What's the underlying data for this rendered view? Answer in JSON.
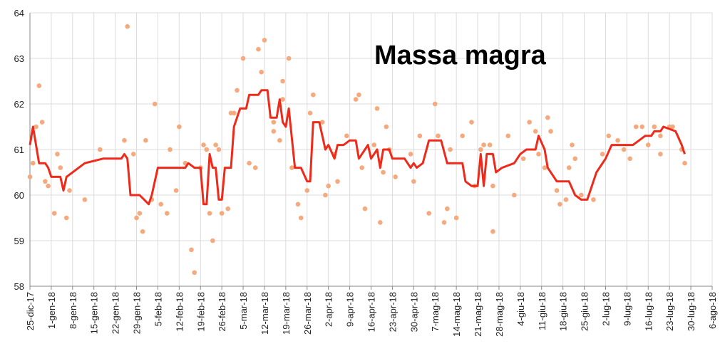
{
  "chart_data": {
    "type": "line",
    "title": "Massa magra",
    "xlim": [
      "2017-12-25",
      "2018-08-06"
    ],
    "xticks": [
      {
        "value": "2017-12-25",
        "label": "25-dic-17"
      },
      {
        "value": "2018-01-01",
        "label": "1-gen-18"
      },
      {
        "value": "2018-01-08",
        "label": "8-gen-18"
      },
      {
        "value": "2018-01-15",
        "label": "15-gen-18"
      },
      {
        "value": "2018-01-22",
        "label": "22-gen-18"
      },
      {
        "value": "2018-01-29",
        "label": "29-gen-18"
      },
      {
        "value": "2018-02-05",
        "label": "5-feb-18"
      },
      {
        "value": "2018-02-12",
        "label": "12-feb-18"
      },
      {
        "value": "2018-02-19",
        "label": "19-feb-18"
      },
      {
        "value": "2018-02-26",
        "label": "26-feb-18"
      },
      {
        "value": "2018-03-05",
        "label": "5-mar-18"
      },
      {
        "value": "2018-03-12",
        "label": "12-mar-18"
      },
      {
        "value": "2018-03-19",
        "label": "19-mar-18"
      },
      {
        "value": "2018-03-26",
        "label": "26-mar-18"
      },
      {
        "value": "2018-04-02",
        "label": "2-apr-18"
      },
      {
        "value": "2018-04-09",
        "label": "9-apr-18"
      },
      {
        "value": "2018-04-16",
        "label": "16-apr-18"
      },
      {
        "value": "2018-04-23",
        "label": "23-apr-18"
      },
      {
        "value": "2018-04-30",
        "label": "30-apr-18"
      },
      {
        "value": "2018-05-07",
        "label": "7-mag-18"
      },
      {
        "value": "2018-05-14",
        "label": "14-mag-18"
      },
      {
        "value": "2018-05-21",
        "label": "21-mag-18"
      },
      {
        "value": "2018-05-28",
        "label": "28-mag-18"
      },
      {
        "value": "2018-06-04",
        "label": "4-giu-18"
      },
      {
        "value": "2018-06-11",
        "label": "11-giu-18"
      },
      {
        "value": "2018-06-18",
        "label": "18-giu-18"
      },
      {
        "value": "2018-06-25",
        "label": "25-giu-18"
      },
      {
        "value": "2018-07-02",
        "label": "2-lug-18"
      },
      {
        "value": "2018-07-09",
        "label": "9-lug-18"
      },
      {
        "value": "2018-07-16",
        "label": "16-lug-18"
      },
      {
        "value": "2018-07-23",
        "label": "23-lug-18"
      },
      {
        "value": "2018-07-30",
        "label": "30-lug-18"
      },
      {
        "value": "2018-08-06",
        "label": "6-ago-18"
      }
    ],
    "ylim": [
      58,
      64
    ],
    "yticks": [
      58,
      59,
      60,
      61,
      62,
      63,
      64
    ],
    "grid": true,
    "series": [
      {
        "type": "scatter",
        "color": "#f6a97c",
        "x": [
          "2017-12-25",
          "2017-12-26",
          "2017-12-27",
          "2017-12-28",
          "2017-12-29",
          "2017-12-30",
          "2017-12-31",
          "2018-01-02",
          "2018-01-03",
          "2018-01-04",
          "2018-01-06",
          "2018-01-07",
          "2018-01-12",
          "2018-01-17",
          "2018-01-25",
          "2018-01-26",
          "2018-01-28",
          "2018-01-29",
          "2018-01-30",
          "2018-01-31",
          "2018-02-01",
          "2018-02-03",
          "2018-02-04",
          "2018-02-06",
          "2018-02-08",
          "2018-02-09",
          "2018-02-11",
          "2018-02-12",
          "2018-02-14",
          "2018-02-16",
          "2018-02-17",
          "2018-02-19",
          "2018-02-20",
          "2018-02-21",
          "2018-02-22",
          "2018-02-23",
          "2018-02-24",
          "2018-02-25",
          "2018-02-26",
          "2018-02-28",
          "2018-03-01",
          "2018-03-02",
          "2018-03-03",
          "2018-03-05",
          "2018-03-07",
          "2018-03-09",
          "2018-03-10",
          "2018-03-11",
          "2018-03-12",
          "2018-03-15",
          "2018-03-15",
          "2018-03-17",
          "2018-03-18",
          "2018-03-18",
          "2018-03-20",
          "2018-03-21",
          "2018-03-23",
          "2018-03-24",
          "2018-03-26",
          "2018-03-27",
          "2018-03-28",
          "2018-03-31",
          "2018-04-01",
          "2018-04-02",
          "2018-04-04",
          "2018-04-05",
          "2018-04-08",
          "2018-04-11",
          "2018-04-12",
          "2018-04-13",
          "2018-04-14",
          "2018-04-17",
          "2018-04-18",
          "2018-04-19",
          "2018-04-20",
          "2018-04-21",
          "2018-04-22",
          "2018-04-24",
          "2018-04-29",
          "2018-04-30",
          "2018-05-02",
          "2018-05-05",
          "2018-05-07",
          "2018-05-08",
          "2018-05-10",
          "2018-05-11",
          "2018-05-12",
          "2018-05-14",
          "2018-05-16",
          "2018-05-19",
          "2018-05-20",
          "2018-05-22",
          "2018-05-23",
          "2018-05-25",
          "2018-05-26",
          "2018-05-26",
          "2018-05-31",
          "2018-06-02",
          "2018-06-05",
          "2018-06-07",
          "2018-06-09",
          "2018-06-10",
          "2018-06-12",
          "2018-06-13",
          "2018-06-14",
          "2018-06-16",
          "2018-06-17",
          "2018-06-19",
          "2018-06-20",
          "2018-06-21",
          "2018-06-22",
          "2018-06-24",
          "2018-06-28",
          "2018-07-01",
          "2018-07-03",
          "2018-07-06",
          "2018-07-08",
          "2018-07-10",
          "2018-07-12",
          "2018-07-14",
          "2018-07-16",
          "2018-07-18",
          "2018-07-20",
          "2018-07-20",
          "2018-07-23",
          "2018-07-24",
          "2018-07-27",
          "2018-07-28"
        ],
        "values": [
          60.4,
          60.7,
          61.5,
          62.4,
          61.6,
          60.3,
          60.2,
          59.6,
          60.9,
          60.6,
          59.5,
          60.1,
          59.9,
          61.0,
          61.2,
          63.7,
          60.9,
          59.5,
          59.6,
          59.2,
          61.2,
          59.9,
          62.0,
          59.8,
          59.6,
          61.0,
          60.1,
          61.5,
          60.7,
          58.8,
          58.3,
          60.6,
          61.1,
          61.0,
          59.6,
          59.0,
          61.1,
          61.0,
          59.6,
          59.7,
          61.8,
          61.8,
          62.3,
          63.0,
          60.7,
          60.6,
          63.2,
          62.7,
          63.4,
          61.6,
          61.4,
          61.2,
          62.5,
          62.1,
          63.0,
          60.6,
          59.8,
          59.5,
          60.1,
          61.8,
          62.2,
          61.6,
          60.0,
          60.2,
          60.9,
          60.3,
          61.3,
          62.1,
          62.2,
          60.6,
          59.7,
          61.1,
          61.9,
          59.4,
          60.5,
          61.5,
          61.0,
          60.4,
          60.9,
          60.3,
          61.3,
          59.6,
          62.0,
          61.3,
          59.4,
          59.7,
          61.0,
          59.5,
          61.3,
          61.6,
          60.2,
          61.0,
          61.1,
          61.1,
          60.2,
          59.2,
          61.3,
          60.0,
          60.8,
          61.6,
          61.4,
          60.9,
          60.6,
          61.7,
          61.4,
          60.1,
          59.8,
          59.9,
          60.6,
          61.1,
          60.8,
          60.0,
          59.9,
          60.9,
          61.3,
          61.2,
          61.0,
          60.8,
          61.5,
          61.5,
          61.1,
          61.5,
          60.9,
          61.3,
          61.5,
          61.5,
          61.0,
          60.7
        ]
      },
      {
        "type": "line",
        "color": "#ee2a1b",
        "x": [
          "2017-12-25",
          "2017-12-26",
          "2017-12-28",
          "2017-12-30",
          "2017-12-31",
          "2018-01-01",
          "2018-01-04",
          "2018-01-05",
          "2018-01-06",
          "2018-01-12",
          "2018-01-18",
          "2018-01-24",
          "2018-01-25",
          "2018-01-26",
          "2018-01-27",
          "2018-01-30",
          "2018-02-02",
          "2018-02-03",
          "2018-02-05",
          "2018-02-14",
          "2018-02-15",
          "2018-02-17",
          "2018-02-19",
          "2018-02-20",
          "2018-02-21",
          "2018-02-22",
          "2018-02-23",
          "2018-02-24",
          "2018-02-25",
          "2018-02-26",
          "2018-02-27",
          "2018-03-01",
          "2018-03-02",
          "2018-03-04",
          "2018-03-06",
          "2018-03-07",
          "2018-03-10",
          "2018-03-11",
          "2018-03-13",
          "2018-03-14",
          "2018-03-16",
          "2018-03-17",
          "2018-03-18",
          "2018-03-19",
          "2018-03-20",
          "2018-03-22",
          "2018-03-24",
          "2018-03-26",
          "2018-03-27",
          "2018-03-28",
          "2018-03-30",
          "2018-04-01",
          "2018-04-02",
          "2018-04-04",
          "2018-04-05",
          "2018-04-07",
          "2018-04-09",
          "2018-04-11",
          "2018-04-12",
          "2018-04-14",
          "2018-04-15",
          "2018-04-16",
          "2018-04-18",
          "2018-04-19",
          "2018-04-20",
          "2018-04-22",
          "2018-04-23",
          "2018-04-27",
          "2018-04-29",
          "2018-04-30",
          "2018-05-01",
          "2018-05-03",
          "2018-05-05",
          "2018-05-09",
          "2018-05-11",
          "2018-05-16",
          "2018-05-17",
          "2018-05-19",
          "2018-05-21",
          "2018-05-22",
          "2018-05-23",
          "2018-05-24",
          "2018-05-26",
          "2018-05-27",
          "2018-05-29",
          "2018-06-02",
          "2018-06-04",
          "2018-06-06",
          "2018-06-09",
          "2018-06-10",
          "2018-06-12",
          "2018-06-13",
          "2018-06-16",
          "2018-06-20",
          "2018-06-22",
          "2018-06-24",
          "2018-06-26",
          "2018-06-27",
          "2018-06-29",
          "2018-07-02",
          "2018-07-04",
          "2018-07-11",
          "2018-07-13",
          "2018-07-15",
          "2018-07-17",
          "2018-07-18",
          "2018-07-20",
          "2018-07-21",
          "2018-07-25",
          "2018-07-27",
          "2018-07-28"
        ],
        "values": [
          61.1,
          61.5,
          60.7,
          60.7,
          60.6,
          60.4,
          60.4,
          60.1,
          60.4,
          60.7,
          60.8,
          60.8,
          60.9,
          60.8,
          60.0,
          60.0,
          59.8,
          60.0,
          60.6,
          60.6,
          60.7,
          60.6,
          60.6,
          59.8,
          59.8,
          60.9,
          60.6,
          60.6,
          59.9,
          59.9,
          60.6,
          60.6,
          61.5,
          61.9,
          61.9,
          62.2,
          62.2,
          62.3,
          62.3,
          61.7,
          61.7,
          62.1,
          61.6,
          61.5,
          61.9,
          60.6,
          60.6,
          60.3,
          60.3,
          61.6,
          61.6,
          61.0,
          61.1,
          60.8,
          61.1,
          61.1,
          61.2,
          61.2,
          60.8,
          61.0,
          61.1,
          60.8,
          61.0,
          60.6,
          61.0,
          61.0,
          60.8,
          60.8,
          60.6,
          60.7,
          60.6,
          60.7,
          61.2,
          61.2,
          60.7,
          60.7,
          60.3,
          60.2,
          60.2,
          60.9,
          60.2,
          60.9,
          60.9,
          60.5,
          60.6,
          60.7,
          60.9,
          61.0,
          61.0,
          61.3,
          61.0,
          60.6,
          60.3,
          60.3,
          60.0,
          59.9,
          59.9,
          60.1,
          60.5,
          60.8,
          61.1,
          61.1,
          61.2,
          61.3,
          61.3,
          61.4,
          61.4,
          61.5,
          61.4,
          61.1,
          60.9
        ]
      }
    ]
  }
}
